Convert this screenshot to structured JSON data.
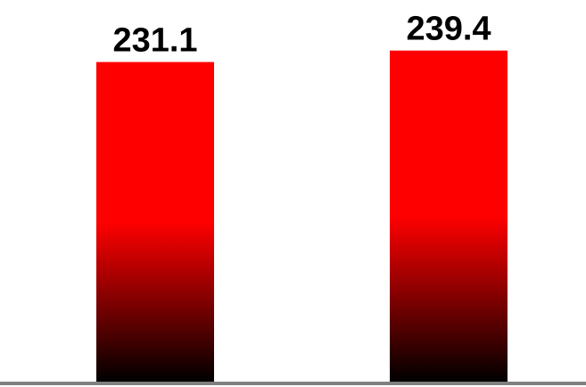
{
  "colors": {
    "bar_top": "#ff0000",
    "bar_bottom": "#000000",
    "baseline": "#808080",
    "label": "#000000"
  },
  "chart_data": {
    "type": "bar",
    "categories": [
      "",
      ""
    ],
    "values": [
      231.1,
      239.4
    ],
    "data_labels": [
      "231.1",
      "239.4"
    ],
    "title": "",
    "xlabel": "",
    "ylabel": "",
    "ylim": [
      0,
      245
    ],
    "grid": false,
    "legend": "none"
  }
}
